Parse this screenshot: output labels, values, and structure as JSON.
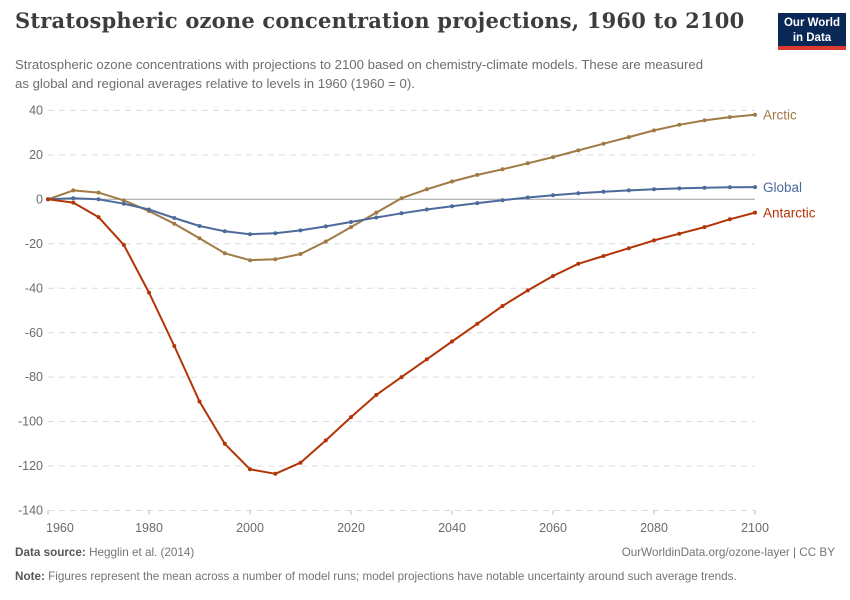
{
  "header": {
    "title": "Stratospheric ozone concentration projections, 1960 to 2100",
    "subtitle": "Stratospheric ozone concentrations with projections to 2100 based on chemistry-climate models. These are measured as global and regional averages relative to levels in 1960 (1960 = 0).",
    "logo": {
      "line1": "Our World",
      "line2": "in Data",
      "bg_color": "#0A2856",
      "bar_color": "#DD3B2F"
    }
  },
  "chart_data": {
    "type": "line",
    "title": "Stratospheric ozone concentration projections, 1960 to 2100",
    "xlabel": "",
    "ylabel": "",
    "xlim": [
      1960,
      2100
    ],
    "ylim": [
      -140,
      40
    ],
    "grid": "horizontal-dashed",
    "legend_position": "right-end-labels",
    "grid_color": "#dcdcdc",
    "zero_line_color": "#a0a0a0",
    "tick_color": "#b9b9b9",
    "tick_label_color": "#6b6b6b",
    "xticks": [
      1960,
      1980,
      2000,
      2020,
      2040,
      2060,
      2080,
      2100
    ],
    "yticks": [
      40,
      20,
      0,
      -20,
      -40,
      -60,
      -80,
      -100,
      -120,
      -140
    ],
    "x": [
      1960,
      1965,
      1970,
      1975,
      1980,
      1985,
      1990,
      1995,
      2000,
      2005,
      2010,
      2015,
      2020,
      2025,
      2030,
      2035,
      2040,
      2045,
      2050,
      2055,
      2060,
      2065,
      2070,
      2075,
      2080,
      2085,
      2090,
      2095,
      2100
    ],
    "series": [
      {
        "name": "Arctic",
        "color": "#A07A45",
        "values": [
          0,
          4,
          3,
          -0.5,
          -5.3,
          -11,
          -17.5,
          -24.3,
          -27.4,
          -27,
          -24.6,
          -19,
          -12.5,
          -6,
          0.5,
          4.5,
          8,
          11,
          13.5,
          16.2,
          19,
          22,
          25,
          28,
          31,
          33.5,
          35.5,
          37,
          38
        ]
      },
      {
        "name": "Global",
        "color": "#4C6A9C",
        "values": [
          0,
          0.5,
          0,
          -2,
          -4.6,
          -8.4,
          -12,
          -14.4,
          -15.7,
          -15.3,
          -14,
          -12.2,
          -10.2,
          -8.2,
          -6.3,
          -4.6,
          -3.1,
          -1.7,
          -0.4,
          0.8,
          1.8,
          2.7,
          3.4,
          4,
          4.5,
          4.9,
          5.2,
          5.4,
          5.5
        ]
      },
      {
        "name": "Antarctic",
        "color": "#B13507",
        "values": [
          0,
          -1.5,
          -8,
          -20.5,
          -42,
          -66,
          -91,
          -110,
          -121.5,
          -123.5,
          -118.5,
          -108.5,
          -98,
          -88,
          -80,
          -72,
          -64,
          -56,
          -48,
          -41,
          -34.5,
          -29,
          -25.5,
          -22,
          -18.5,
          -15.5,
          -12.5,
          -9,
          -6
        ]
      }
    ]
  },
  "footer": {
    "datasource_label": "Data source:",
    "datasource_text": "Hegglin et al. (2014)",
    "url": "OurWorldinData.org/ozone-layer",
    "divider": " | ",
    "license": "CC BY",
    "note_label": "Note:",
    "note_text": "Figures represent the mean across a number of model runs; model projections have notable uncertainty around such average trends."
  }
}
